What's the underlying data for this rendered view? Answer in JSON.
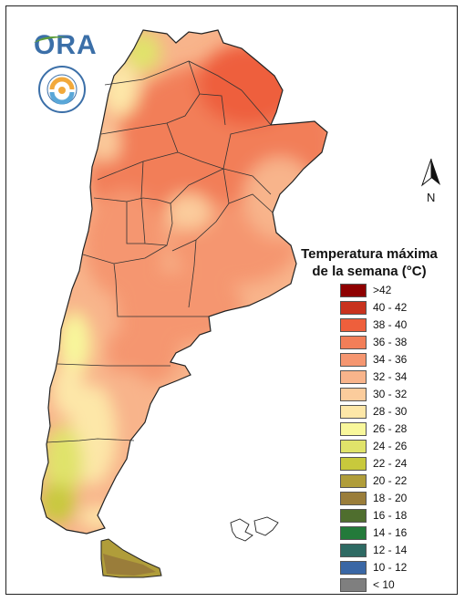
{
  "legend": {
    "title_line1": "Temperatura máxima",
    "title_line2": "de la semana (°C)",
    "items": [
      {
        "label": ">42",
        "color": "#8e0000"
      },
      {
        "label": "40 - 42",
        "color": "#c8321e"
      },
      {
        "label": "38 - 40",
        "color": "#ee5f3c"
      },
      {
        "label": "36 - 38",
        "color": "#f27e58"
      },
      {
        "label": "34 - 36",
        "color": "#f59670"
      },
      {
        "label": "32 - 34",
        "color": "#f8b48b"
      },
      {
        "label": "30 - 32",
        "color": "#fbcc9c"
      },
      {
        "label": "28 - 30",
        "color": "#fde7a8"
      },
      {
        "label": "26 - 28",
        "color": "#f8f79b"
      },
      {
        "label": "24 - 26",
        "color": "#e0e36a"
      },
      {
        "label": "22 - 24",
        "color": "#c8c93c"
      },
      {
        "label": "20 - 22",
        "color": "#b09d3a"
      },
      {
        "label": "18 - 20",
        "color": "#9a7d3a"
      },
      {
        "label": "16 - 18",
        "color": "#4f6e2e"
      },
      {
        "label": "14 - 16",
        "color": "#237a3a"
      },
      {
        "label": "12 - 14",
        "color": "#2e6a63"
      },
      {
        "label": "10 - 12",
        "color": "#3a67a5"
      },
      {
        "label": "< 10",
        "color": "#7f7f7f"
      }
    ]
  },
  "logo": {
    "text": "ORA",
    "icon": "ora-logo-icon"
  },
  "seal": {
    "icon": "smn-seal-icon"
  },
  "north_arrow": {
    "label": "N",
    "icon": "north-arrow-icon"
  },
  "map": {
    "icon": "argentina-temperature-map"
  }
}
